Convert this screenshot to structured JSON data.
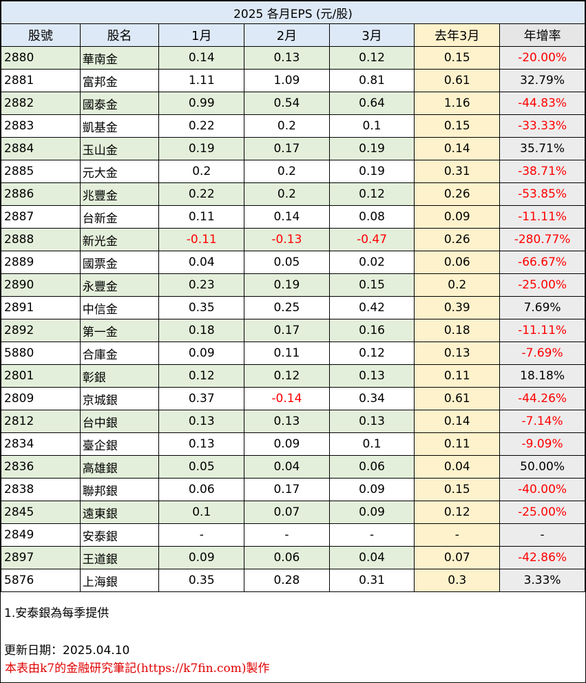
{
  "table": {
    "title": "2025 各月EPS (元/股)",
    "headers": [
      "股號",
      "股名",
      "1月",
      "2月",
      "3月",
      "去年3月",
      "年增率"
    ],
    "rows": [
      [
        "2880",
        "華南金",
        "0.14",
        "0.13",
        "0.12",
        "0.15",
        "-20.00%"
      ],
      [
        "2881",
        "富邦金",
        "1.11",
        "1.09",
        "0.81",
        "0.61",
        "32.79%"
      ],
      [
        "2882",
        "國泰金",
        "0.99",
        "0.54",
        "0.64",
        "1.16",
        "-44.83%"
      ],
      [
        "2883",
        "凱基金",
        "0.22",
        "0.2",
        "0.1",
        "0.15",
        "-33.33%"
      ],
      [
        "2884",
        "玉山金",
        "0.19",
        "0.17",
        "0.19",
        "0.14",
        "35.71%"
      ],
      [
        "2885",
        "元大金",
        "0.2",
        "0.2",
        "0.19",
        "0.31",
        "-38.71%"
      ],
      [
        "2886",
        "兆豐金",
        "0.22",
        "0.2",
        "0.12",
        "0.26",
        "-53.85%"
      ],
      [
        "2887",
        "台新金",
        "0.11",
        "0.14",
        "0.08",
        "0.09",
        "-11.11%"
      ],
      [
        "2888",
        "新光金",
        "-0.11",
        "-0.13",
        "-0.47",
        "0.26",
        "-280.77%"
      ],
      [
        "2889",
        "國票金",
        "0.04",
        "0.05",
        "0.02",
        "0.06",
        "-66.67%"
      ],
      [
        "2890",
        "永豐金",
        "0.23",
        "0.19",
        "0.15",
        "0.2",
        "-25.00%"
      ],
      [
        "2891",
        "中信金",
        "0.35",
        "0.25",
        "0.42",
        "0.39",
        "7.69%"
      ],
      [
        "2892",
        "第一金",
        "0.18",
        "0.17",
        "0.16",
        "0.18",
        "-11.11%"
      ],
      [
        "5880",
        "合庫金",
        "0.09",
        "0.11",
        "0.12",
        "0.13",
        "-7.69%"
      ],
      [
        "2801",
        "彰銀",
        "0.12",
        "0.12",
        "0.13",
        "0.11",
        "18.18%"
      ],
      [
        "2809",
        "京城銀",
        "0.37",
        "-0.14",
        "0.34",
        "0.61",
        "-44.26%"
      ],
      [
        "2812",
        "台中銀",
        "0.13",
        "0.13",
        "0.13",
        "0.14",
        "-7.14%"
      ],
      [
        "2834",
        "臺企銀",
        "0.13",
        "0.09",
        "0.1",
        "0.11",
        "-9.09%"
      ],
      [
        "2836",
        "高雄銀",
        "0.05",
        "0.04",
        "0.06",
        "0.04",
        "50.00%"
      ],
      [
        "2838",
        "聯邦銀",
        "0.06",
        "0.17",
        "0.09",
        "0.15",
        "-40.00%"
      ],
      [
        "2845",
        "遠東銀",
        "0.1",
        "0.07",
        "0.09",
        "0.12",
        "-25.00%"
      ],
      [
        "2849",
        "安泰銀",
        "-",
        "-",
        "-",
        "-",
        "-"
      ],
      [
        "2897",
        "王道銀",
        "0.09",
        "0.06",
        "0.04",
        "0.07",
        "-42.86%"
      ],
      [
        "5876",
        "上海銀",
        "0.35",
        "0.28",
        "0.31",
        "0.3",
        "3.33%"
      ]
    ]
  },
  "notes": {
    "footnote": "1.安泰銀為每季提供",
    "updated": "更新日期：2025.04.10",
    "credit": "本表由k7的金融研究筆記(https://k7fin.com)製作"
  },
  "colors": {
    "header_bg": "#dde9f6",
    "alt_row_bg": "#e3efda",
    "last_year_bg": "#fef2cc",
    "growth_bg": "#ececec",
    "negative": "#ff0000"
  }
}
